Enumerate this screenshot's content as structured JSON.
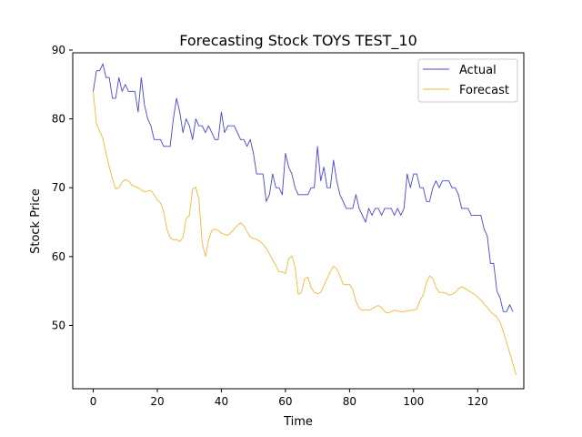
{
  "chart_data": {
    "type": "line",
    "title": "Forecasting Stock TOYS TEST_10",
    "xlabel": "Time",
    "ylabel": "Stock Price",
    "xlim": [
      -6.4,
      134.4
    ],
    "ylim": [
      40.8,
      89.6
    ],
    "xticks": [
      0,
      20,
      40,
      60,
      80,
      100,
      120
    ],
    "yticks": [
      50,
      60,
      70,
      80,
      90
    ],
    "grid": false,
    "legend_position": "top-right",
    "series": [
      {
        "name": "Actual",
        "color": "#4444dd",
        "values": [
          84,
          87,
          87,
          88,
          86,
          86,
          83,
          83,
          86,
          84,
          85,
          84,
          84,
          84,
          81,
          86,
          82,
          80,
          79,
          77,
          77,
          77,
          76,
          76,
          76,
          80,
          83,
          81,
          78,
          80,
          79,
          77,
          80,
          79,
          79,
          78,
          79,
          78,
          77,
          77,
          81,
          78,
          79,
          79,
          79,
          78,
          77,
          77,
          76,
          77,
          75,
          72,
          72,
          72,
          68,
          69,
          72,
          70,
          70,
          69,
          75,
          73,
          72,
          70,
          69,
          69,
          69,
          69,
          70,
          70,
          76,
          71,
          73,
          70,
          70,
          74,
          71,
          69,
          68,
          67,
          67,
          67,
          69,
          67,
          66,
          65,
          67,
          66,
          67,
          67,
          66,
          67,
          67,
          67,
          66,
          67,
          66,
          67,
          72,
          70,
          72,
          72,
          70,
          70,
          68,
          68,
          70,
          71,
          70,
          71,
          71,
          71,
          70,
          70,
          69,
          67,
          67,
          67,
          66,
          66,
          66,
          66,
          64,
          63,
          59,
          59,
          55,
          54,
          52,
          52,
          53,
          52
        ]
      },
      {
        "name": "Forecast",
        "color": "#f5b731",
        "values": [
          84,
          79.3,
          78.2,
          77.2,
          75,
          73,
          71.3,
          69.8,
          70,
          70.8,
          71.2,
          71,
          70.4,
          70.2,
          70,
          69.7,
          69.4,
          69.5,
          69.6,
          69,
          68.2,
          67.8,
          66.5,
          64,
          62.8,
          62.4,
          62.5,
          62.2,
          62.8,
          65.5,
          66,
          69.8,
          70.1,
          68.2,
          62,
          60,
          62.4,
          63.8,
          64,
          63.8,
          63.4,
          63.2,
          63.1,
          63.5,
          64,
          64.5,
          64.9,
          64.5,
          63.6,
          62.9,
          62.6,
          62.5,
          62.2,
          61.8,
          61.2,
          60.4,
          59.5,
          58.7,
          57.8,
          57.8,
          57.5,
          59.7,
          60.1,
          58.5,
          54.5,
          54.8,
          56.8,
          57,
          55.5,
          54.8,
          54.6,
          54.8,
          55.8,
          56.8,
          57.8,
          58.6,
          58.2,
          57.2,
          56,
          55.9,
          56,
          55.2,
          53.5,
          52.5,
          52.2,
          52.3,
          52.2,
          52.4,
          52.7,
          52.9,
          52.6,
          52,
          51.8,
          52,
          52.2,
          52.1,
          52,
          52,
          52.1,
          52.2,
          52.2,
          52.4,
          53.6,
          54.4,
          56.2,
          57.2,
          56.8,
          55.5,
          54.8,
          54.8,
          54.7,
          54.4,
          54.5,
          54.8,
          55.3,
          55.6,
          55.4,
          55.1,
          54.8,
          54.5,
          54.1,
          53.7,
          53.1,
          52.6,
          52,
          51.6,
          51.2,
          50.5,
          49.1,
          47.6,
          46,
          44.4,
          42.8
        ]
      }
    ]
  }
}
